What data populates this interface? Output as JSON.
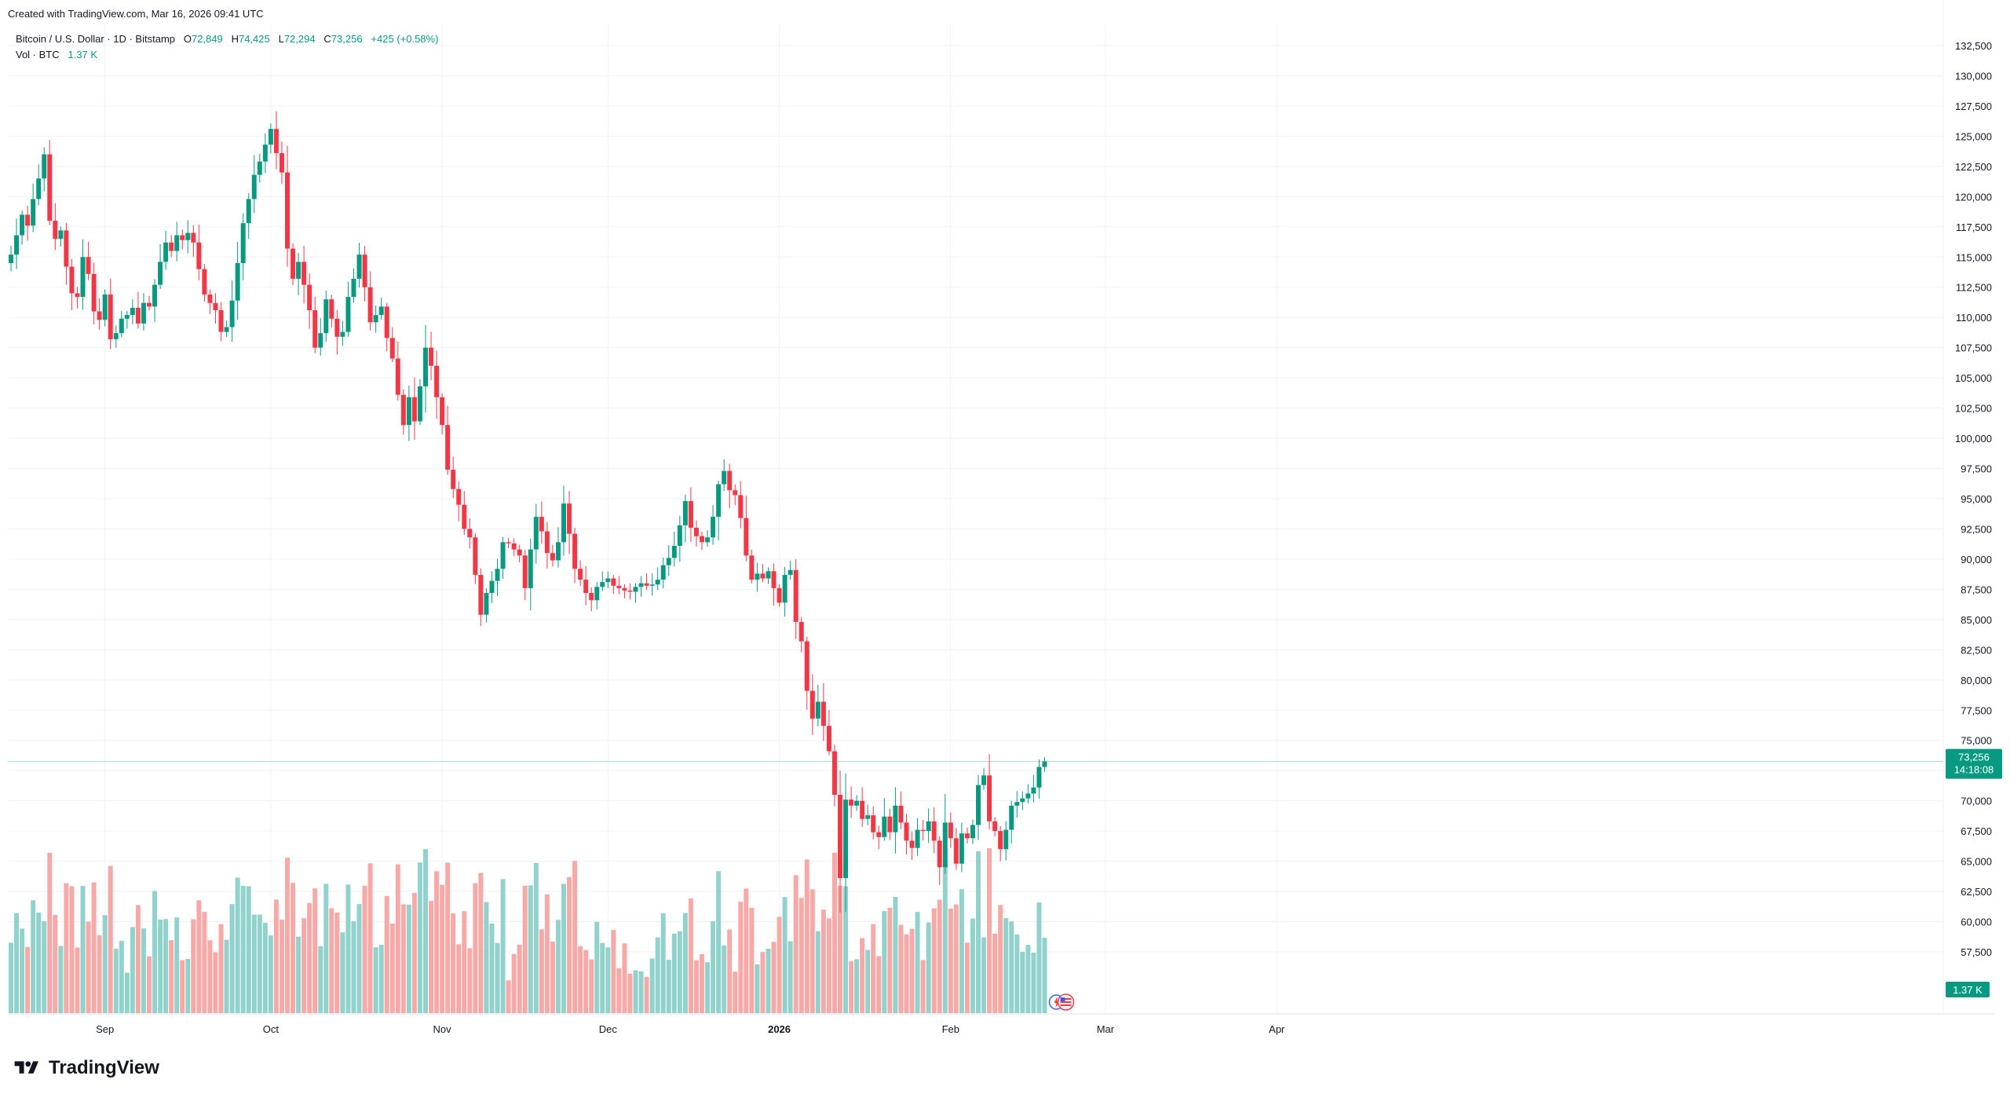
{
  "watermark": "Created with TradingView.com, Mar 16, 2026 09:41 UTC",
  "legend": {
    "symbol": "Bitcoin / U.S. Dollar · 1D · Bitstamp",
    "o_label": "O",
    "o": "72,849",
    "h_label": "H",
    "h": "74,425",
    "l_label": "L",
    "l": "72,294",
    "c_label": "C",
    "c": "73,256",
    "change": "+425 (+0.58%)",
    "vol_label": "Vol · BTC",
    "vol_value": "1.37 K"
  },
  "brand": "TradingView",
  "colors": {
    "up": "#089981",
    "down": "#f23645",
    "up_vol": "#92d2cc",
    "down_vol": "#f7a9a7",
    "grid": "#f0f3fa",
    "text": "#131722"
  },
  "price_tag": {
    "price": "73,256",
    "countdown": "14:18:08"
  },
  "volume_tag": "1.37 K",
  "icons": [
    "lightning-icon",
    "us-flag-icon"
  ],
  "chart_data": {
    "type": "candlestick",
    "symbol": "BTCUSD",
    "interval": "1D",
    "y_axis_ticks": [
      132500,
      130000,
      127500,
      125000,
      122500,
      120000,
      117500,
      115000,
      112500,
      110000,
      107500,
      105000,
      102500,
      100000,
      97500,
      95000,
      92500,
      90000,
      87500,
      85000,
      82500,
      80000,
      77500,
      75000,
      72500,
      70000,
      67500,
      65000,
      62500,
      60000,
      57500
    ],
    "y_axis_labels": [
      "132,500",
      "130,000",
      "127,500",
      "125,000",
      "122,500",
      "120,000",
      "117,500",
      "115,000",
      "112,500",
      "110,000",
      "107,500",
      "105,000",
      "102,500",
      "100,000",
      "97,500",
      "95,000",
      "92,500",
      "90,000",
      "87,500",
      "85,000",
      "82,500",
      "80,000",
      "77,500",
      "75,000",
      "72,500",
      "70,000",
      "67,500",
      "65,000",
      "62,500",
      "60,000",
      "57,500"
    ],
    "ylim": [
      55000,
      134000
    ],
    "x_axis_labels": [
      {
        "label": "Sep",
        "index": 17,
        "bold": false
      },
      {
        "label": "Oct",
        "index": 47,
        "bold": false
      },
      {
        "label": "Nov",
        "index": 78,
        "bold": false
      },
      {
        "label": "Dec",
        "index": 108,
        "bold": false
      },
      {
        "label": "2026",
        "index": 139,
        "bold": true
      },
      {
        "label": "Feb",
        "index": 170,
        "bold": false
      },
      {
        "label": "Mar",
        "index": 198,
        "bold": false
      },
      {
        "label": "Apr",
        "index": 229,
        "bold": false
      }
    ],
    "closes": [
      115200,
      116800,
      118500,
      117600,
      119800,
      121500,
      123500,
      118000,
      116500,
      117200,
      114200,
      112000,
      111700,
      115000,
      113600,
      110500,
      109800,
      111900,
      108200,
      108700,
      109900,
      110200,
      110800,
      109500,
      111200,
      110900,
      112700,
      114600,
      116200,
      115500,
      116800,
      116400,
      117000,
      116200,
      114000,
      111900,
      111200,
      110600,
      108800,
      109200,
      111400,
      114500,
      117800,
      119800,
      121800,
      122900,
      124300,
      125600,
      123600,
      122000,
      115700,
      113200,
      114600,
      112700,
      110600,
      107500,
      108700,
      111500,
      109900,
      108400,
      108800,
      111700,
      113200,
      115200,
      112500,
      109600,
      110200,
      110900,
      108300,
      106600,
      103600,
      101100,
      103400,
      101400,
      104300,
      107500,
      106000,
      103400,
      101100,
      97400,
      95800,
      94500,
      92500,
      91800,
      88700,
      85400,
      87200,
      88200,
      89200,
      91400,
      91300,
      90800,
      90300,
      87600,
      90800,
      93500,
      92300,
      90500,
      89900,
      91400,
      94600,
      92100,
      89200,
      88300,
      87200,
      86600,
      87700,
      88100,
      88400,
      87800,
      87600,
      87400,
      87300,
      87700,
      88000,
      87800,
      87900,
      88300,
      89500,
      90100,
      91100,
      92800,
      94800,
      92600,
      91900,
      91400,
      91800,
      93500,
      96200,
      97300,
      95700,
      95300,
      93400,
      90300,
      88300,
      88800,
      88400,
      89000,
      87600,
      86400,
      88700,
      89100,
      84800,
      83200,
      79100,
      76800,
      78200,
      76200,
      74100,
      70500,
      63600,
      70100,
      69600,
      70000,
      68500,
      68800,
      67400,
      67000,
      68700,
      67400,
      69600,
      68200,
      66700,
      66100,
      67600,
      67500,
      68300,
      66700,
      64500,
      68200,
      66900,
      64800,
      67300,
      66900,
      68000,
      71300,
      72100,
      68300,
      67500,
      66000,
      67600,
      69600,
      69900,
      70200,
      70600,
      71100,
      72800,
      73256
    ],
    "volume": {
      "unit": "BTC",
      "last": "1.37 K"
    },
    "last_price": 73256,
    "grid": true
  }
}
